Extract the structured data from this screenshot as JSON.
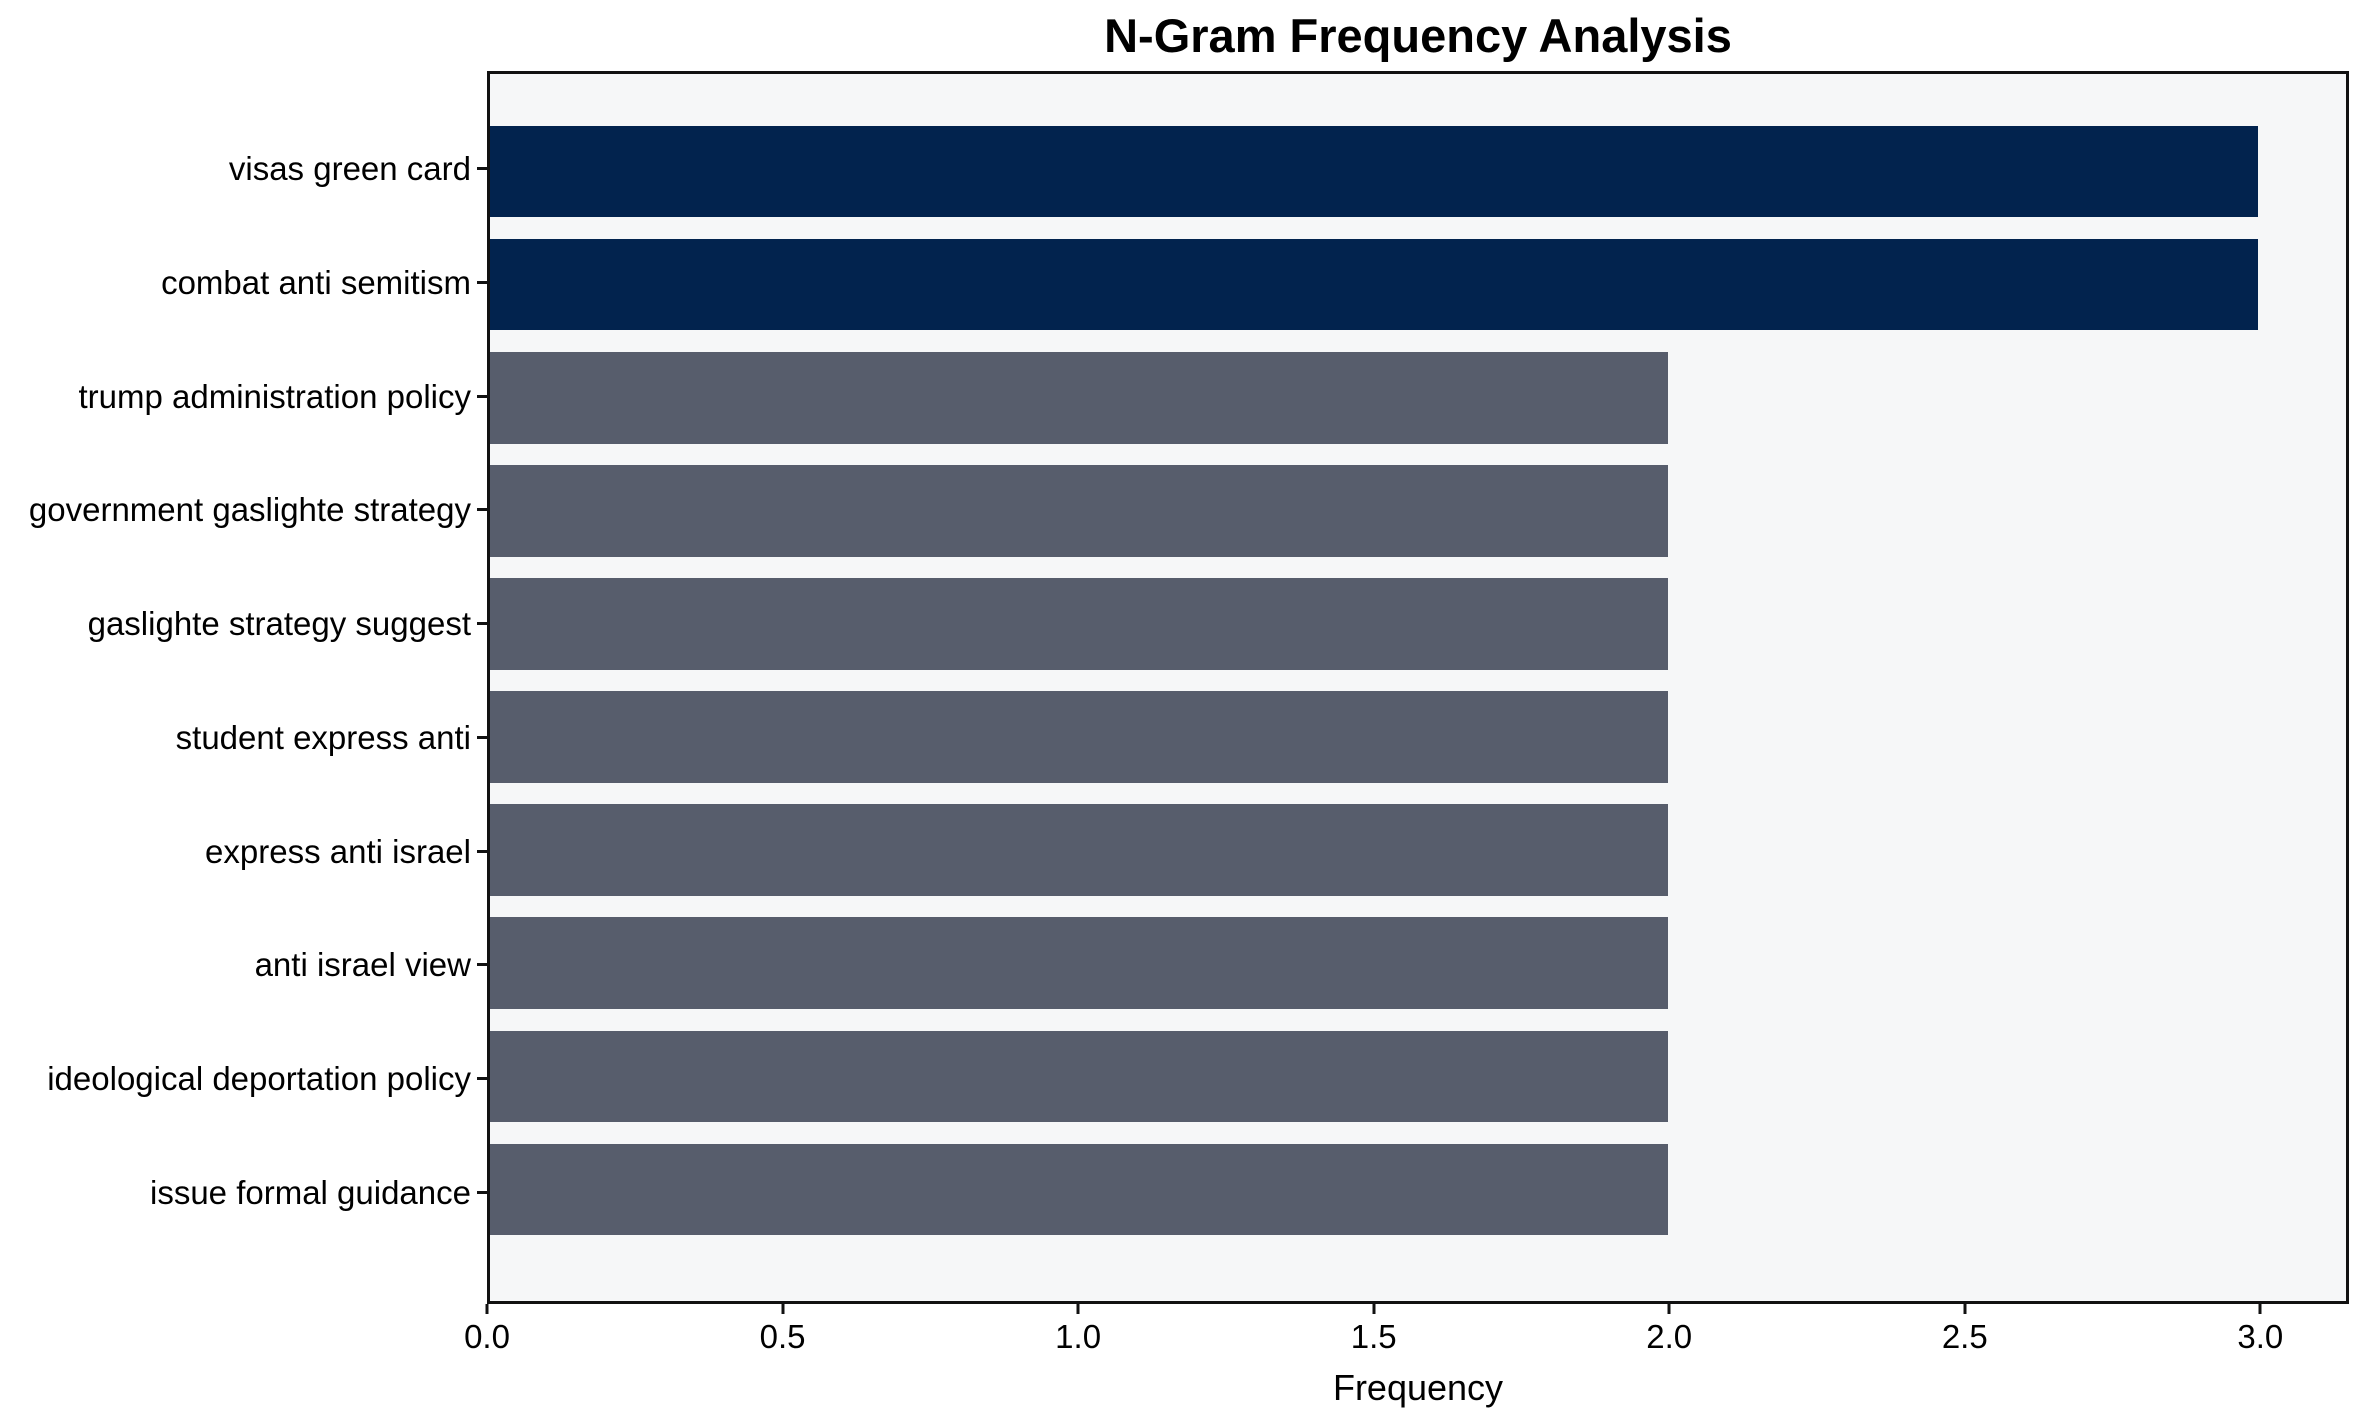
{
  "chart_data": {
    "type": "bar",
    "orientation": "horizontal",
    "title": "N-Gram Frequency Analysis",
    "xlabel": "Frequency",
    "ylabel": "",
    "categories": [
      "visas green card",
      "combat anti semitism",
      "trump administration policy",
      "government gaslighte strategy",
      "gaslighte strategy suggest",
      "student express anti",
      "express anti israel",
      "anti israel view",
      "ideological deportation policy",
      "issue formal guidance"
    ],
    "values": [
      3,
      3,
      2,
      2,
      2,
      2,
      2,
      2,
      2,
      2
    ],
    "bar_colors": [
      "#02234E",
      "#02234E",
      "#575D6C",
      "#575D6C",
      "#575D6C",
      "#575D6C",
      "#575D6C",
      "#575D6C",
      "#575D6C",
      "#575D6C"
    ],
    "xlim": [
      0,
      3.15
    ],
    "xticks": [
      0.0,
      0.5,
      1.0,
      1.5,
      2.0,
      2.5,
      3.0
    ],
    "xtick_labels": [
      "0.0",
      "0.5",
      "1.0",
      "1.5",
      "2.0",
      "2.5",
      "3.0"
    ],
    "grid": false,
    "legend_position": "none",
    "plot_background": "#f6f7f8",
    "figure_background": "#ffffff",
    "accent_color_high": "#02234E",
    "accent_color_normal": "#575D6C"
  }
}
